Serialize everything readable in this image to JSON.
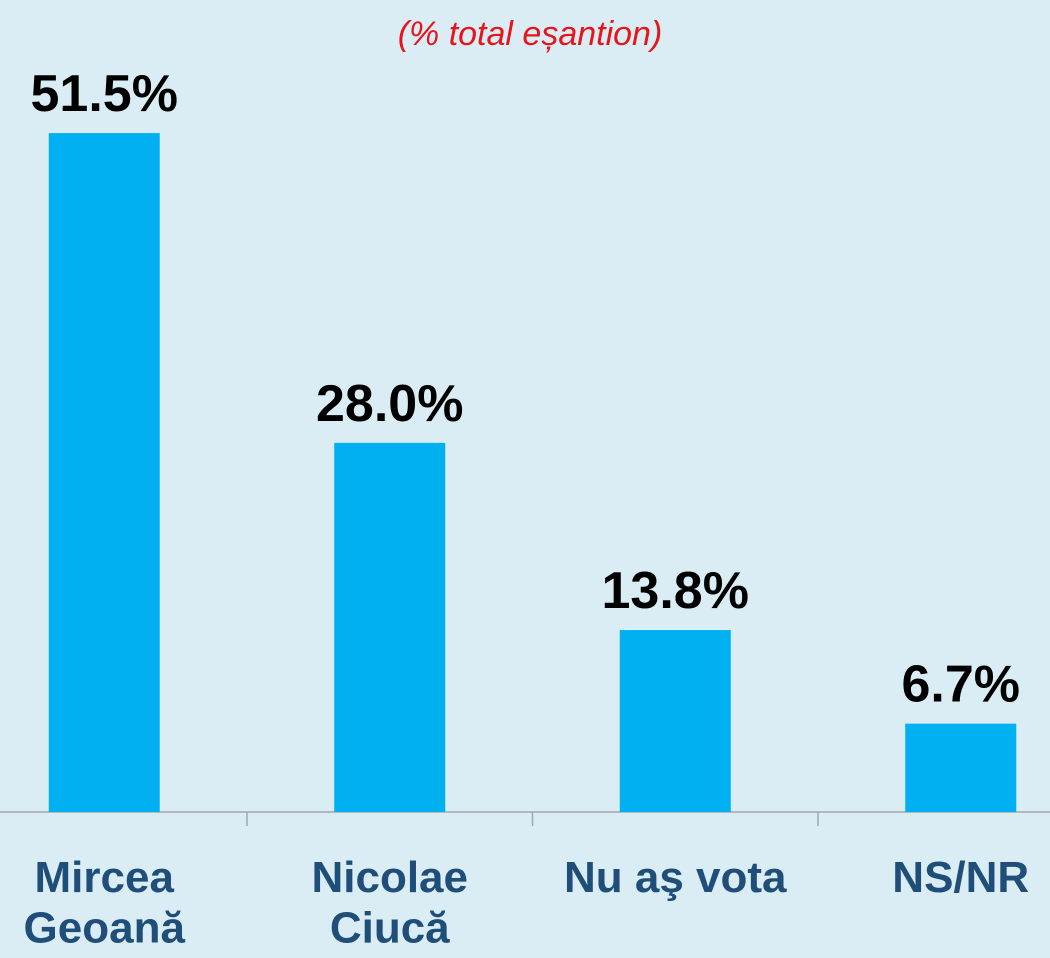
{
  "chart_data": {
    "type": "bar",
    "subtitle": "(% total eșantion)",
    "categories": [
      "Mircea\nGeoană",
      "Nicolae\nCiucă",
      "Nu aş vota",
      "NS/NR"
    ],
    "values": [
      51.5,
      28.0,
      13.8,
      6.7
    ],
    "value_labels": [
      "51.5%",
      "28.0%",
      "13.8%",
      "6.7%"
    ],
    "color": "#00b0f0",
    "ylim": [
      0,
      60
    ]
  }
}
